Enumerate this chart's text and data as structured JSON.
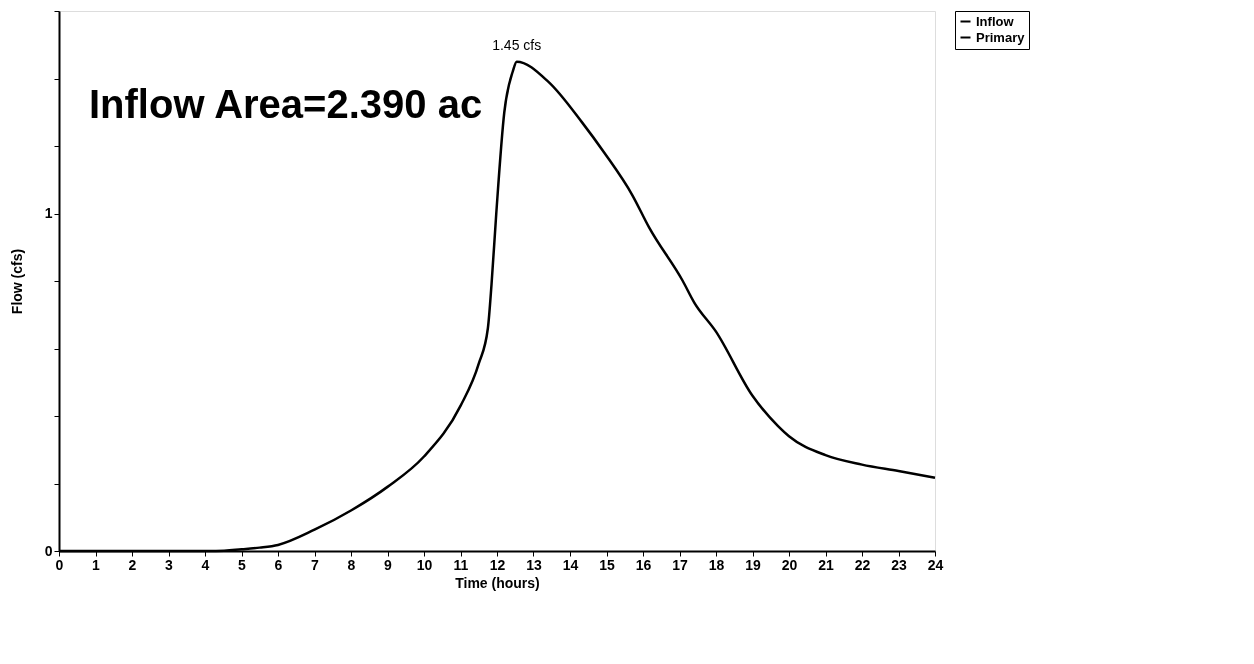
{
  "chart_data": {
    "type": "line",
    "xlabel": "Time  (hours)",
    "ylabel": "Flow  (cfs)",
    "x": [
      0,
      1,
      2,
      3,
      4,
      4.3,
      5,
      5.5,
      6,
      7,
      8,
      9,
      10,
      11,
      11.5,
      11.75,
      11.85,
      11.98,
      12.2,
      12.43,
      12.54,
      13.41,
      14.33,
      14.94,
      15.71,
      16.17,
      17.09,
      17.4,
      18,
      19,
      19.7,
      20,
      21,
      22,
      23,
      24
    ],
    "series": [
      {
        "name": "Inflow",
        "color": "#000000",
        "values": [
          0,
          0,
          0,
          0,
          0,
          0,
          0.005,
          0.01,
          0.018,
          0.063,
          0.12,
          0.19,
          0.28,
          0.43,
          0.555,
          0.66,
          0.79,
          1.0,
          1.3,
          1.42,
          1.45,
          1.39,
          1.27,
          1.18,
          1.054,
          0.958,
          0.8,
          0.737,
          0.65,
          0.46,
          0.37,
          0.34,
          0.284,
          0.256,
          0.237,
          0.217
        ]
      },
      {
        "name": "Primary",
        "color": "#000000",
        "values": [
          null,
          null,
          null,
          null,
          null,
          null,
          null,
          null,
          null,
          null,
          null,
          null,
          null,
          null,
          null,
          null,
          null,
          null,
          null,
          null,
          null,
          null,
          null,
          null,
          null,
          null,
          null,
          null,
          null,
          null,
          null,
          null,
          null,
          null,
          null,
          null
        ]
      }
    ],
    "xlim": [
      0,
      24
    ],
    "xticks": [
      0,
      1,
      2,
      3,
      4,
      5,
      6,
      7,
      8,
      9,
      10,
      11,
      12,
      13,
      14,
      15,
      16,
      17,
      18,
      19,
      20,
      21,
      22,
      23,
      24
    ],
    "ylim": [
      0,
      1.6
    ],
    "yticks": [
      0,
      {
        "value": 0.2,
        "label": null
      },
      {
        "value": 0.4,
        "label": null
      },
      {
        "value": 0.6,
        "label": null
      },
      {
        "value": 0.8,
        "label": null
      },
      1,
      {
        "value": 1.2,
        "label": null
      },
      {
        "value": 1.4,
        "label": null
      },
      {
        "value": 1.6,
        "label": null
      }
    ],
    "annotations": [
      "Inflow Area=2.390 ac",
      {
        "text": "1.45 cfs",
        "x": 12.54,
        "y": 1.45
      }
    ],
    "legend": "top right",
    "grid": false,
    "marker": "none",
    "line_style": "solid"
  }
}
